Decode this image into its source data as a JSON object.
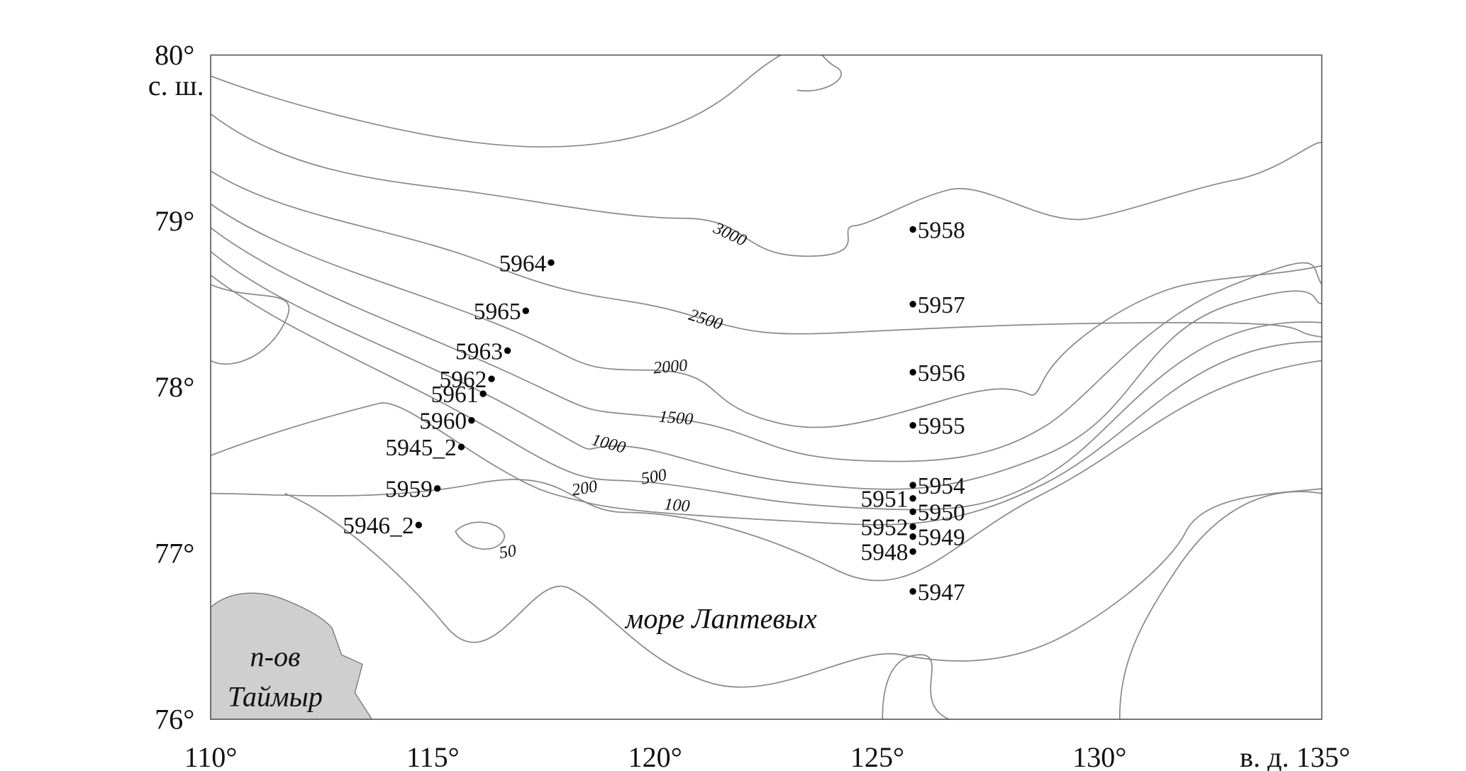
{
  "xlim": [
    110,
    135
  ],
  "ylim": [
    76,
    80
  ],
  "yticks": [
    {
      "value": 80,
      "label": "80°"
    },
    {
      "value": 79,
      "label": "79°"
    },
    {
      "value": 78,
      "label": "78°"
    },
    {
      "value": 77,
      "label": "77°"
    },
    {
      "value": 76,
      "label": "76°"
    }
  ],
  "ylabel": "с. ш.",
  "xticks": [
    {
      "value": 110,
      "label": "110°"
    },
    {
      "value": 115,
      "label": "115°"
    },
    {
      "value": 120,
      "label": "120°"
    },
    {
      "value": 125,
      "label": "125°"
    },
    {
      "value": 130,
      "label": "130°"
    },
    {
      "value": 135,
      "label": "в. д. 135°"
    }
  ],
  "contours": [
    3000,
    2500,
    2000,
    1500,
    1000,
    500,
    200,
    100,
    50
  ],
  "sea": "море Лаптевых",
  "peninsula": [
    "п-ов",
    "Таймыр"
  ],
  "stations": [
    {
      "name": "5958",
      "lon": 125.8,
      "lat": 78.95
    },
    {
      "name": "5957",
      "lon": 125.8,
      "lat": 78.5
    },
    {
      "name": "5956",
      "lon": 125.8,
      "lat": 78.09
    },
    {
      "name": "5955",
      "lon": 125.8,
      "lat": 77.77
    },
    {
      "name": "5954",
      "lon": 125.8,
      "lat": 77.41
    },
    {
      "name": "5951",
      "lon": 125.8,
      "lat": 77.33
    },
    {
      "name": "5950",
      "lon": 125.8,
      "lat": 77.25
    },
    {
      "name": "5952",
      "lon": 125.8,
      "lat": 77.16
    },
    {
      "name": "5949",
      "lon": 125.8,
      "lat": 77.1
    },
    {
      "name": "5948",
      "lon": 125.8,
      "lat": 77.01
    },
    {
      "name": "5947",
      "lon": 125.8,
      "lat": 76.77
    },
    {
      "name": "5964",
      "lon": 117.66,
      "lat": 78.75
    },
    {
      "name": "5965",
      "lon": 117.09,
      "lat": 78.46
    },
    {
      "name": "5963",
      "lon": 116.68,
      "lat": 78.22
    },
    {
      "name": "5962",
      "lon": 116.32,
      "lat": 78.05
    },
    {
      "name": "5961",
      "lon": 116.13,
      "lat": 77.96
    },
    {
      "name": "5960",
      "lon": 115.87,
      "lat": 77.8
    },
    {
      "name": "5945_2",
      "lon": 115.64,
      "lat": 77.64
    },
    {
      "name": "5959",
      "lon": 115.1,
      "lat": 77.39
    },
    {
      "name": "5946_2",
      "lon": 114.68,
      "lat": 77.17
    }
  ]
}
